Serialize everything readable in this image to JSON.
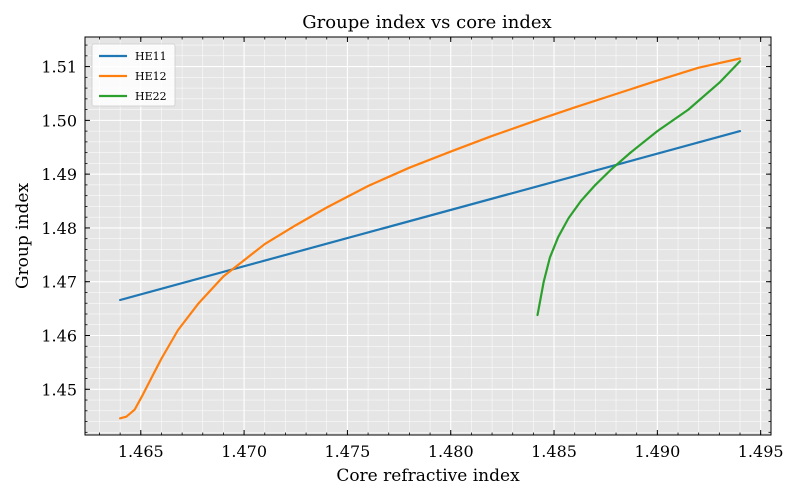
{
  "chart_data": {
    "type": "line",
    "title": "Groupe index vs core index",
    "xlabel": "Core refractive index",
    "ylabel": "Group index",
    "xlim": [
      1.4623,
      1.4955
    ],
    "ylim": [
      1.4415,
      1.5155
    ],
    "xticks": [
      1.465,
      1.47,
      1.475,
      1.48,
      1.485,
      1.49,
      1.495
    ],
    "xtick_labels": [
      "1.465",
      "1.470",
      "1.475",
      "1.480",
      "1.485",
      "1.490",
      "1.495"
    ],
    "yticks": [
      1.45,
      1.46,
      1.47,
      1.48,
      1.49,
      1.5,
      1.51
    ],
    "ytick_labels": [
      "1.45",
      "1.46",
      "1.47",
      "1.48",
      "1.49",
      "1.50",
      "1.51"
    ],
    "grid": true,
    "legend_position": "top-left",
    "background": "#e5e5e5",
    "series": [
      {
        "name": "HE11",
        "color": "#1f77b4",
        "x": [
          1.464,
          1.494
        ],
        "y": [
          1.4666,
          1.498
        ]
      },
      {
        "name": "HE12",
        "color": "#ff7f0e",
        "x": [
          1.464,
          1.4643,
          1.4647,
          1.4651,
          1.4655,
          1.466,
          1.4668,
          1.4678,
          1.469,
          1.47,
          1.471,
          1.4725,
          1.474,
          1.476,
          1.478,
          1.48,
          1.482,
          1.484,
          1.486,
          1.488,
          1.49,
          1.492,
          1.494
        ],
        "y": [
          1.4446,
          1.4449,
          1.4462,
          1.449,
          1.452,
          1.4557,
          1.461,
          1.466,
          1.471,
          1.474,
          1.477,
          1.4805,
          1.4838,
          1.4878,
          1.4912,
          1.4942,
          1.4971,
          1.4998,
          1.5024,
          1.5049,
          1.5074,
          1.5098,
          1.5115
        ]
      },
      {
        "name": "HE22",
        "color": "#2ca02c",
        "x": [
          1.4842,
          1.4845,
          1.4848,
          1.4852,
          1.4857,
          1.4863,
          1.487,
          1.4878,
          1.4887,
          1.49,
          1.4915,
          1.493,
          1.494
        ],
        "y": [
          1.4638,
          1.47,
          1.4745,
          1.4783,
          1.4818,
          1.485,
          1.488,
          1.491,
          1.494,
          1.498,
          1.502,
          1.507,
          1.511
        ]
      }
    ]
  }
}
